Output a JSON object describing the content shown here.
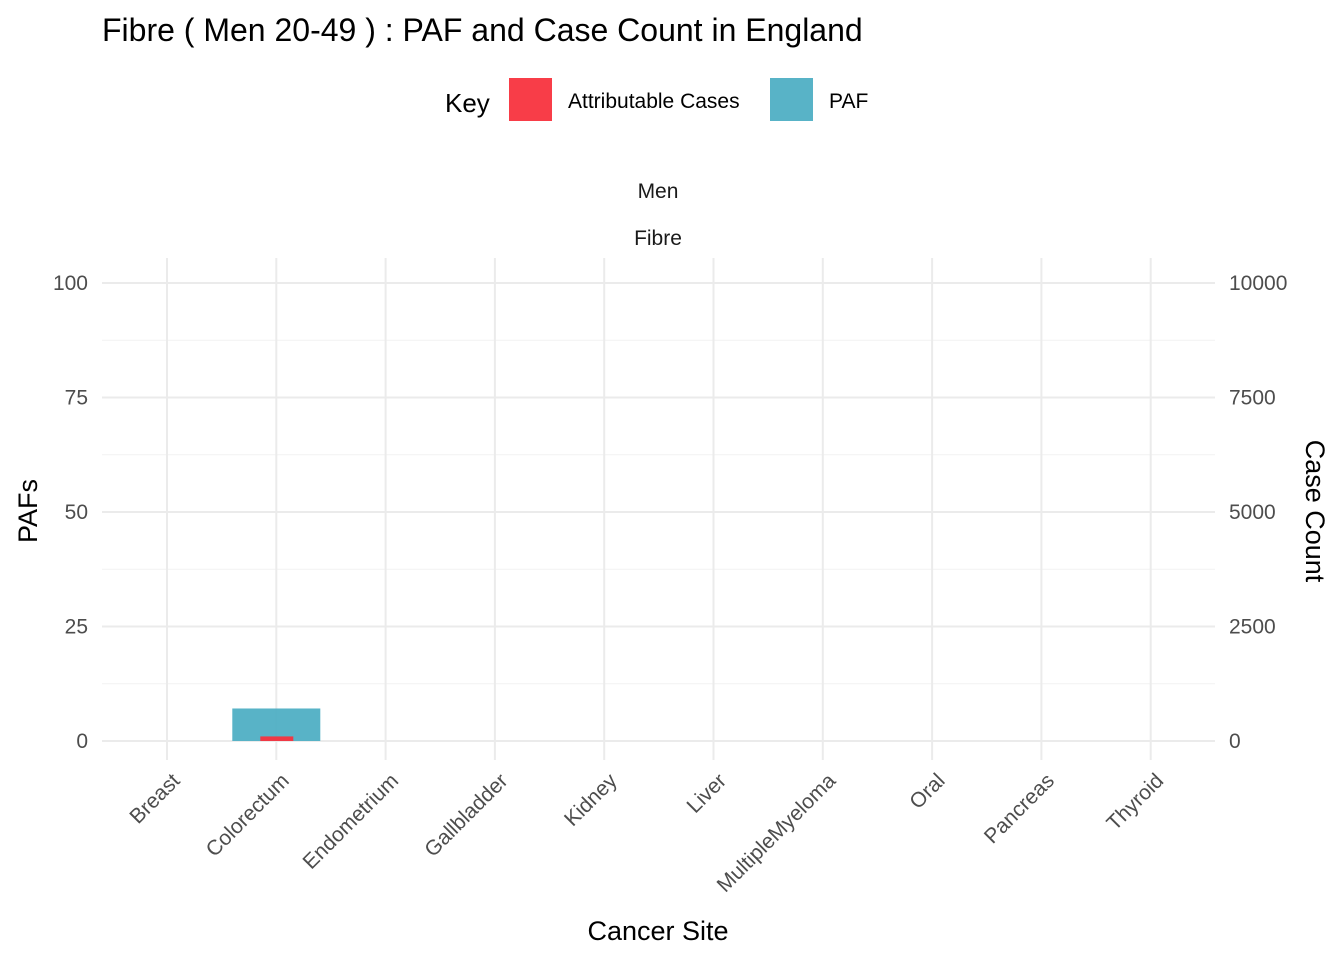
{
  "chart_data": {
    "type": "bar",
    "title": "Fibre ( Men 20-49 ) : PAF and Case Count in England",
    "legend": {
      "title": "Key",
      "position": "top",
      "items": [
        {
          "label": "Attributable Cases",
          "color": "#F8333E"
        },
        {
          "label": "PAF",
          "color": "#4FAFC4"
        }
      ]
    },
    "facet_labels": [
      "Men",
      "Fibre"
    ],
    "xlabel": "Cancer Site",
    "ylabel": "PAFs",
    "ylabel_right": "Case Count",
    "categories": [
      "Breast",
      "Colorectum",
      "Endometrium",
      "Gallbladder",
      "Kidney",
      "Liver",
      "MultipleMyeloma",
      "Oral",
      "Pancreas",
      "Thyroid"
    ],
    "ylim": [
      0,
      100
    ],
    "yticks": [
      "0",
      "25",
      "50",
      "75",
      "100"
    ],
    "ylim_right": [
      0,
      10000
    ],
    "yticks_right": [
      "0",
      "2500",
      "5000",
      "7500",
      "10000"
    ],
    "grid": true,
    "series": [
      {
        "name": "PAF",
        "axis": "left",
        "color": "#4FAFC4",
        "values": [
          0,
          7.1,
          0,
          0,
          0,
          0,
          0,
          0,
          0,
          0
        ]
      },
      {
        "name": "Attributable Cases",
        "axis": "right",
        "color": "#F8333E",
        "values": [
          0,
          100,
          0,
          0,
          0,
          0,
          0,
          0,
          0,
          0
        ]
      }
    ]
  }
}
